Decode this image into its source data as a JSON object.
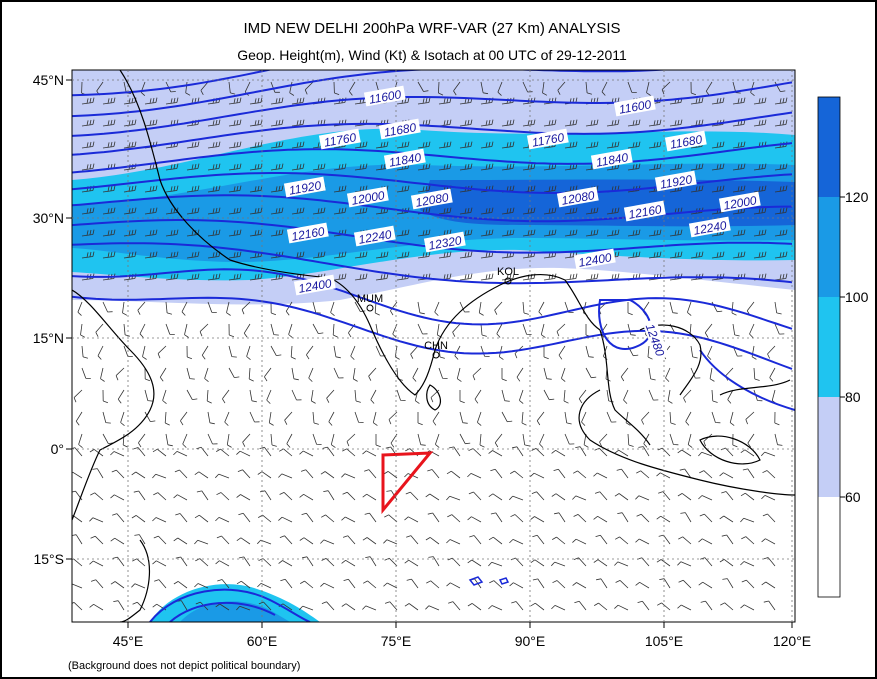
{
  "header": {
    "title": "IMD NEW DELHI 200hPa WRF-VAR (27 Km) ANALYSIS",
    "subtitle": "Geop. Height(m), Wind (Kt) & Isotach  at 00 UTC of 29-12-2011"
  },
  "map": {
    "lat_labels": [
      "45°N",
      "30°N",
      "15°N",
      "0°",
      "15°S"
    ],
    "lon_labels": [
      "45°E",
      "60°E",
      "75°E",
      "90°E",
      "105°E",
      "120°E"
    ],
    "contour_labels": [
      "11600",
      "11600",
      "11680",
      "11680",
      "11760",
      "11760",
      "11840",
      "11840",
      "11920",
      "11920",
      "12000",
      "12000",
      "12080",
      "12080",
      "12160",
      "12160",
      "12240",
      "12240",
      "12320",
      "12400",
      "12400",
      "12480"
    ],
    "cities": [
      "MUM",
      "CHN",
      "KOL"
    ],
    "footnote": "(Background does not depict political boundary)"
  },
  "colorbar": {
    "labels": [
      "120",
      "100",
      "80",
      "60"
    ],
    "colors": [
      "#1565d8",
      "#1a9ae6",
      "#1fc4f0",
      "#c4cef6",
      "#ffffff"
    ]
  }
}
